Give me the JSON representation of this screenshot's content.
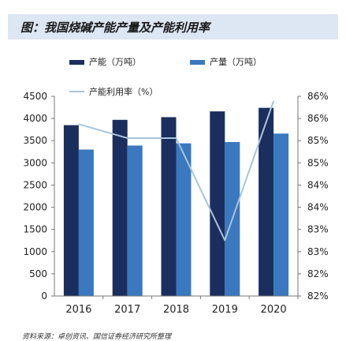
{
  "figure": {
    "title": "图：我国烧碱产能产量及产能利用率",
    "source": "资料来源：卓创资讯、国信证券经济研究所整理"
  },
  "colors": {
    "capacity": "#1b2f5e",
    "output": "#3a78bf",
    "rate": "#a9c4de",
    "title_bg": "#dde6f3"
  },
  "chart_data": {
    "type": "bar",
    "categories": [
      "2016",
      "2017",
      "2018",
      "2019",
      "2020"
    ],
    "series": [
      {
        "name": "产能（万吨）",
        "kind": "bar",
        "axis": "left",
        "values": [
          3850,
          3970,
          4030,
          4160,
          4240
        ]
      },
      {
        "name": "产量（万吨）",
        "kind": "bar",
        "axis": "left",
        "values": [
          3300,
          3390,
          3440,
          3470,
          3660
        ]
      },
      {
        "name": "产能利用率（%）",
        "kind": "line",
        "axis": "right",
        "values": [
          85.7,
          85.4,
          85.4,
          83.2,
          86.2
        ]
      }
    ],
    "y_left": {
      "range": [
        0,
        4500
      ],
      "ticks": [
        "0",
        "500",
        "1000",
        "1500",
        "2000",
        "2500",
        "3000",
        "3500",
        "4000",
        "4500"
      ]
    },
    "y_right": {
      "range": [
        82,
        86.3
      ],
      "ticks": [
        "82%",
        "82%",
        "83%",
        "83%",
        "84%",
        "84%",
        "85%",
        "85%",
        "86%",
        "86%"
      ]
    },
    "legend_placement": "top",
    "grid": false
  }
}
